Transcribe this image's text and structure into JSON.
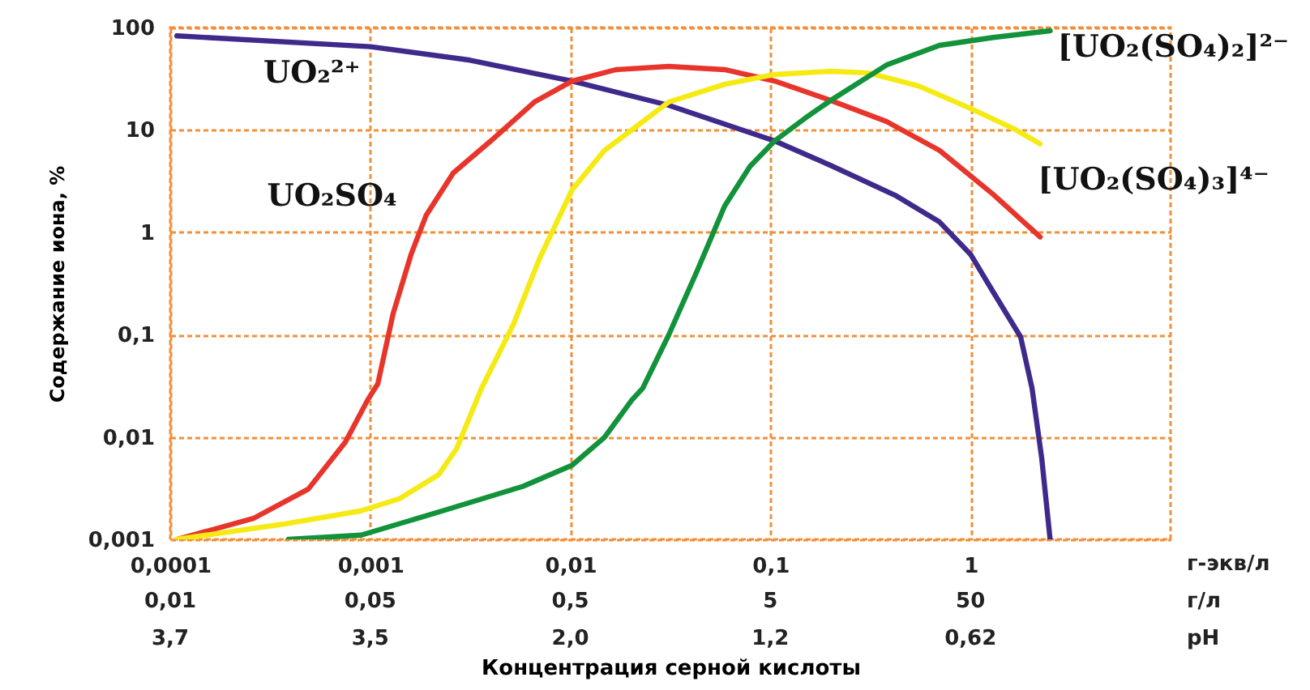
{
  "chart_data": {
    "type": "line",
    "xlabel": "Концентрация серной кислоты",
    "ylabel": "Содержание иона, %",
    "log": "xy",
    "grid": true,
    "xlim": [
      0.0001,
      10
    ],
    "ylim": [
      0.001,
      100
    ],
    "xticks": [
      {
        "value": 0.0001,
        "label": "0,0001"
      },
      {
        "value": 0.001,
        "label": "0,001"
      },
      {
        "value": 0.01,
        "label": "0,01"
      },
      {
        "value": 0.1,
        "label": "0,1"
      },
      1
    ],
    "yticks": [
      {
        "value": 0.001,
        "label": "0,001"
      },
      {
        "value": 0.01,
        "label": "0,01"
      },
      {
        "value": 0.1,
        "label": "0,1"
      },
      1,
      10,
      100
    ],
    "annotations": [
      "г-экв/л",
      "0,01",
      "0,05",
      "0,5",
      "5",
      "50",
      "г/л",
      "3,7",
      "3,5",
      "2,0",
      "1,2",
      "0,62",
      "pH"
    ],
    "series": [
      {
        "name": "UO₂²⁺",
        "color": "#3f2a8c",
        "x": [
          0.000108,
          0.001,
          0.00315,
          0.0102,
          0.031,
          0.105,
          0.2,
          0.42,
          0.7,
          1.0,
          1.3,
          1.78,
          2.03,
          2.27,
          2.5
        ],
        "values": [
          83,
          65,
          48,
          30,
          17.4,
          7.8,
          4.5,
          2.3,
          1.26,
          0.61,
          0.26,
          0.095,
          0.03,
          0.0062,
          0.001
        ]
      },
      {
        "name": "UO₂SO₄",
        "color": "#e8352b",
        "x": [
          0.000108,
          0.00026,
          0.00049,
          0.00075,
          0.00097,
          0.00109,
          0.0013,
          0.0016,
          0.0019,
          0.0026,
          0.004,
          0.0066,
          0.0102,
          0.0169,
          0.031,
          0.059,
          0.105,
          0.2,
          0.38,
          0.7,
          1.3,
          2.23
        ],
        "values": [
          0.001,
          0.0016,
          0.0031,
          0.0089,
          0.023,
          0.033,
          0.16,
          0.61,
          1.46,
          3.8,
          7.8,
          18.7,
          30,
          38.8,
          41.7,
          38.8,
          30,
          19.4,
          12.1,
          6.3,
          2.34,
          0.9
        ]
      },
      {
        "name": "[UO₂(SO₄)₃]⁴⁻",
        "color": "#f5ea14",
        "x": [
          0.000108,
          0.00036,
          0.0009,
          0.0014,
          0.0022,
          0.0027,
          0.0036,
          0.0052,
          0.007,
          0.0102,
          0.0148,
          0.0203,
          0.031,
          0.059,
          0.105,
          0.2,
          0.31,
          0.55,
          1.0,
          1.69,
          2.23
        ],
        "values": [
          0.001,
          0.0014,
          0.0019,
          0.0025,
          0.0043,
          0.0077,
          0.03,
          0.127,
          0.55,
          2.6,
          6.3,
          10,
          18.7,
          27.9,
          34.8,
          37.4,
          36,
          26.9,
          16.2,
          10,
          7.3
        ]
      },
      {
        "name": "[UO₂(SO₄)₂]²⁻",
        "color": "#12923a",
        "x": [
          0.00039,
          0.0009,
          0.0023,
          0.0058,
          0.0102,
          0.0148,
          0.0203,
          0.023,
          0.031,
          0.043,
          0.059,
          0.079,
          0.105,
          0.149,
          0.2,
          0.38,
          0.7,
          1.3,
          2.5
        ],
        "values": [
          0.001,
          0.0011,
          0.0019,
          0.0033,
          0.0053,
          0.0099,
          0.023,
          0.03,
          0.099,
          0.42,
          1.8,
          4.4,
          7.8,
          13,
          19.4,
          43,
          67,
          80,
          93
        ]
      }
    ]
  }
}
